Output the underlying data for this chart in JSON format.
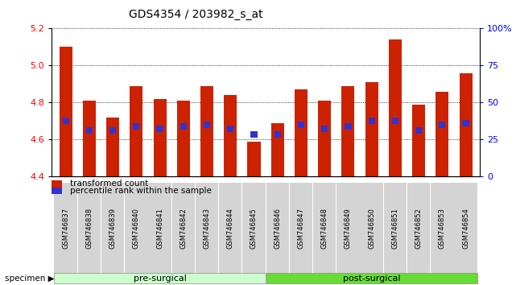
{
  "title": "GDS4354 / 203982_s_at",
  "categories": [
    "GSM746837",
    "GSM746838",
    "GSM746839",
    "GSM746840",
    "GSM746841",
    "GSM746842",
    "GSM746843",
    "GSM746844",
    "GSM746845",
    "GSM746846",
    "GSM746847",
    "GSM746848",
    "GSM746849",
    "GSM746850",
    "GSM746851",
    "GSM746852",
    "GSM746853",
    "GSM746854"
  ],
  "bar_values": [
    5.1,
    4.81,
    4.72,
    4.89,
    4.82,
    4.81,
    4.89,
    4.84,
    4.59,
    4.69,
    4.87,
    4.81,
    4.89,
    4.91,
    5.14,
    4.79,
    4.86,
    4.96
  ],
  "blue_values": [
    4.7,
    4.65,
    4.65,
    4.67,
    4.66,
    4.67,
    4.68,
    4.66,
    4.63,
    4.63,
    4.68,
    4.66,
    4.67,
    4.7,
    4.7,
    4.65,
    4.68,
    4.69
  ],
  "ymin": 4.4,
  "ymax": 5.2,
  "yticks": [
    4.4,
    4.6,
    4.8,
    5.0,
    5.2
  ],
  "right_yticks": [
    0,
    25,
    50,
    75,
    100
  ],
  "right_yticklabels": [
    "0",
    "25",
    "50",
    "75",
    "100%"
  ],
  "bar_color": "#cc2200",
  "blue_color": "#3333cc",
  "bar_width": 0.55,
  "pre_surgical_count": 9,
  "post_surgical_count": 9,
  "pre_color": "#ccffcc",
  "post_color": "#66dd33",
  "specimen_label": "specimen",
  "legend": [
    {
      "label": "transformed count",
      "color": "#cc2200"
    },
    {
      "label": "percentile rank within the sample",
      "color": "#3333cc"
    }
  ],
  "background_color": "#ffffff",
  "tick_label_bg": "#cccccc",
  "title_fontsize": 10,
  "axis_fontsize": 7,
  "legend_fontsize": 8
}
